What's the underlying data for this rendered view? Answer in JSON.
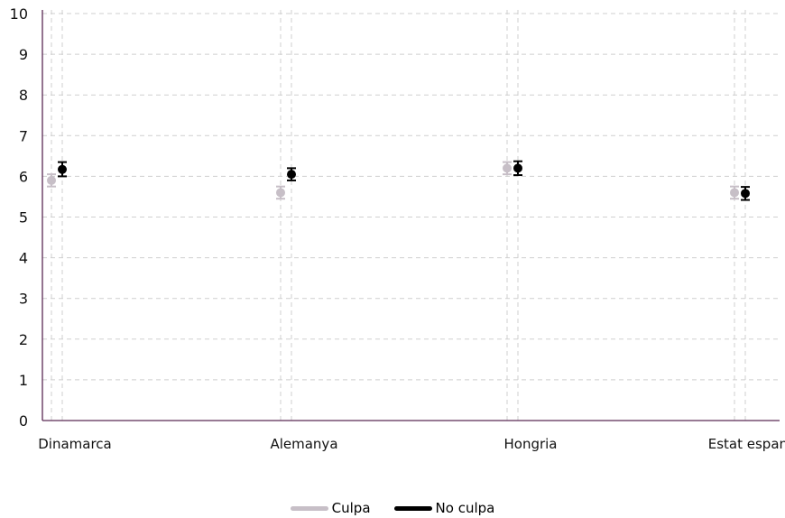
{
  "chart_data": {
    "type": "scatter",
    "categories": [
      "Dinamarca",
      "Alemanya",
      "Hongria",
      "Estat espanyol"
    ],
    "ylim": [
      0,
      10
    ],
    "yticks": [
      "0",
      "1",
      "2",
      "3",
      "4",
      "5",
      "6",
      "7",
      "8",
      "9",
      "10"
    ],
    "grid": true,
    "legend_position": "bottom",
    "series": [
      {
        "name": "Culpa",
        "color": "#c7bfc7",
        "values": [
          5.9,
          5.6,
          6.2,
          5.6
        ],
        "error_low": [
          5.75,
          5.45,
          6.05,
          5.45
        ],
        "error_high": [
          6.05,
          5.75,
          6.35,
          5.75
        ]
      },
      {
        "name": "No culpa",
        "color": "#000000",
        "values": [
          6.17,
          6.05,
          6.2,
          5.58
        ],
        "error_low": [
          6.0,
          5.9,
          6.03,
          5.42
        ],
        "error_high": [
          6.35,
          6.2,
          6.37,
          5.74
        ]
      }
    ]
  },
  "legend": {
    "items": [
      {
        "label": "Culpa",
        "color": "#c7bfc7"
      },
      {
        "label": "No culpa",
        "color": "#000000"
      }
    ]
  }
}
